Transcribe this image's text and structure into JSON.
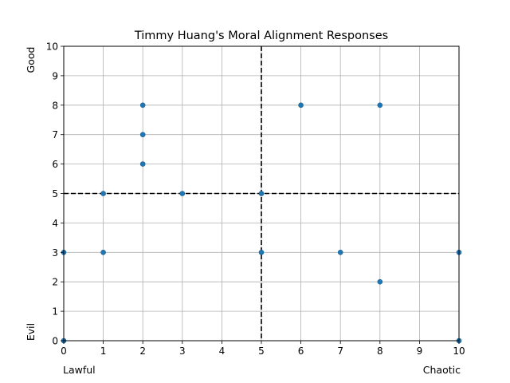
{
  "chart_data": {
    "type": "scatter",
    "title": "Timmy Huang's Moral Alignment Responses",
    "xlim": [
      0,
      10
    ],
    "ylim": [
      0,
      10
    ],
    "x_ticks": [
      0,
      1,
      2,
      3,
      4,
      5,
      6,
      7,
      8,
      9,
      10
    ],
    "y_ticks": [
      0,
      1,
      2,
      3,
      4,
      5,
      6,
      7,
      8,
      9,
      10
    ],
    "x_axis_labels": {
      "left": "Lawful",
      "right": "Chaotic"
    },
    "y_axis_labels": {
      "top": "Good",
      "bottom": "Evil"
    },
    "grid": true,
    "reference_lines": [
      {
        "orientation": "vertical",
        "value": 5,
        "style": "dashed",
        "color": "#000000"
      },
      {
        "orientation": "horizontal",
        "value": 5,
        "style": "dashed",
        "color": "#000000"
      }
    ],
    "marker_color": "#1f77b4",
    "points": [
      {
        "x": 0,
        "y": 0
      },
      {
        "x": 0,
        "y": 3
      },
      {
        "x": 1,
        "y": 3
      },
      {
        "x": 1,
        "y": 5
      },
      {
        "x": 2,
        "y": 6
      },
      {
        "x": 2,
        "y": 7
      },
      {
        "x": 2,
        "y": 8
      },
      {
        "x": 3,
        "y": 5
      },
      {
        "x": 5,
        "y": 3
      },
      {
        "x": 5,
        "y": 5
      },
      {
        "x": 6,
        "y": 8
      },
      {
        "x": 7,
        "y": 3
      },
      {
        "x": 8,
        "y": 2
      },
      {
        "x": 8,
        "y": 8
      },
      {
        "x": 10,
        "y": 0
      },
      {
        "x": 10,
        "y": 3
      }
    ]
  }
}
